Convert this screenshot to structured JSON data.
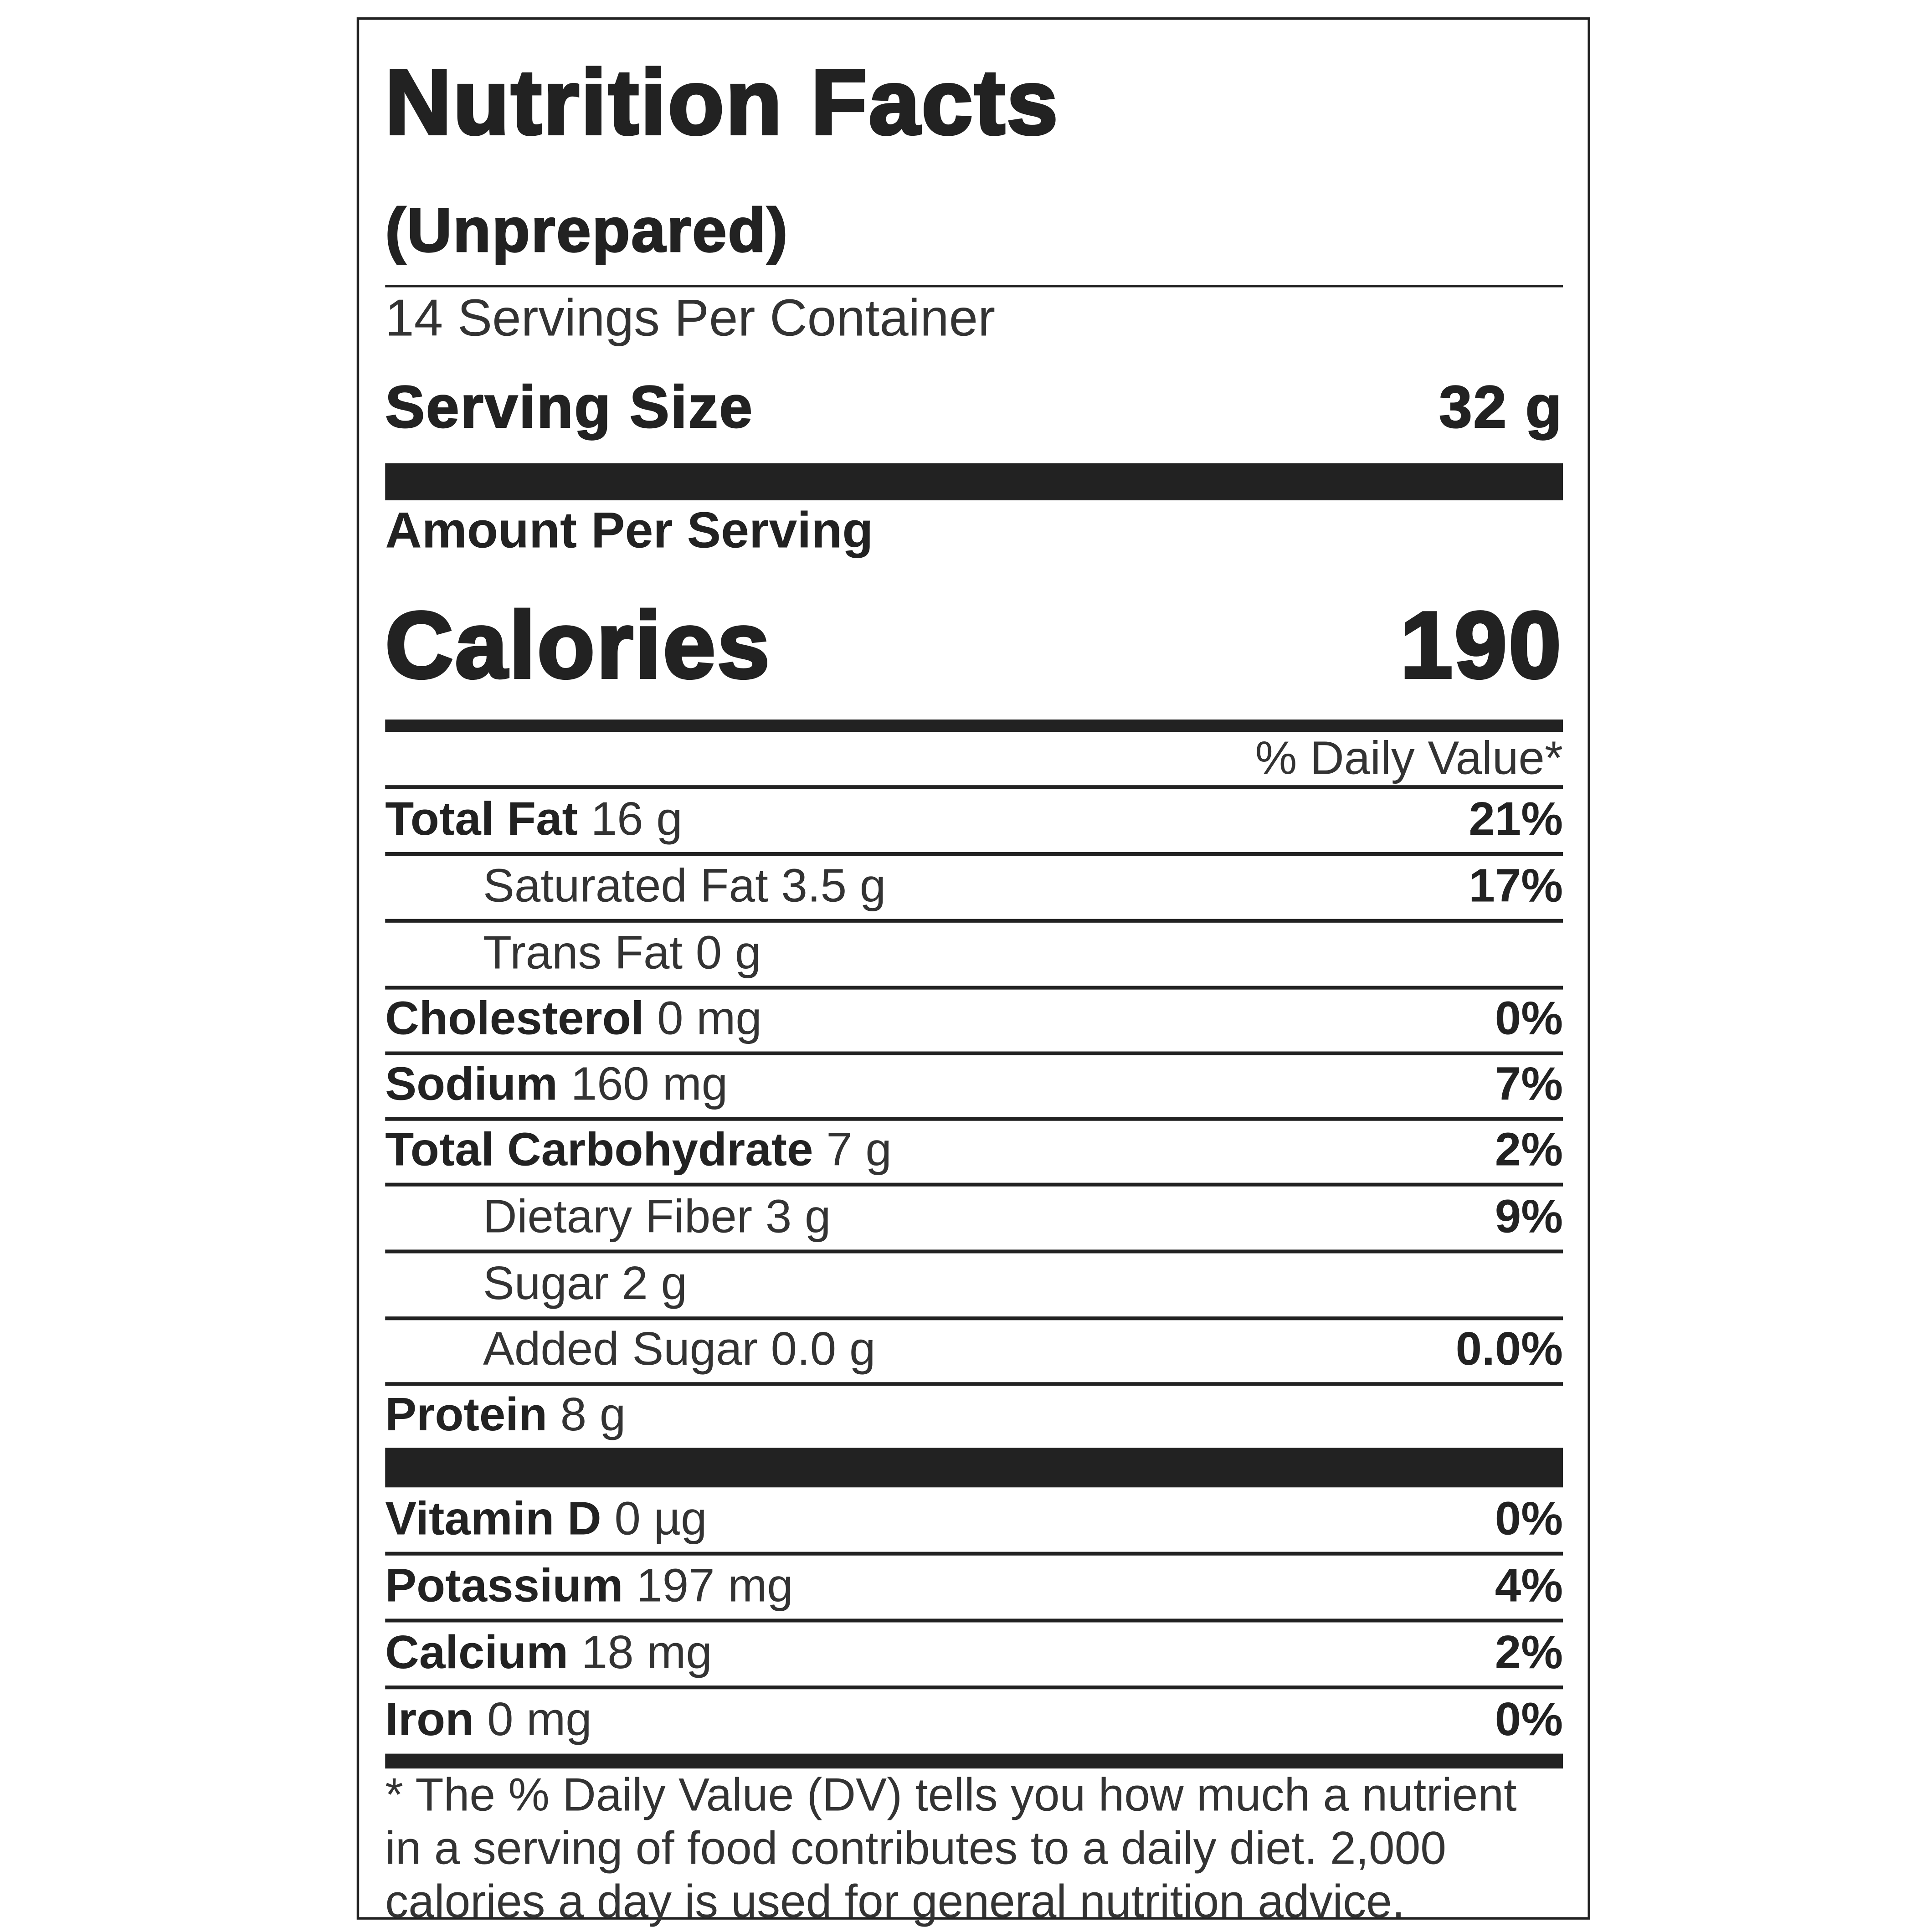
{
  "title": "Nutrition Facts",
  "subtitle": "(Unprepared)",
  "servings_per_container": "14 Servings Per Container",
  "serving_size": {
    "label": "Serving Size",
    "value": "32 g"
  },
  "amount_per_serving": "Amount Per Serving",
  "calories": {
    "label": "Calories",
    "value": "190"
  },
  "daily_value_header": "% Daily Value*",
  "nutrients": [
    {
      "name": "Total Fat",
      "amount": "16 g",
      "dv": "21%",
      "bold": true
    },
    {
      "name": "Saturated Fat",
      "amount": "3.5 g",
      "dv": "17%",
      "bold": false
    },
    {
      "name": "Trans Fat",
      "amount": "0 g",
      "dv": "",
      "bold": false
    },
    {
      "name": "Cholesterol",
      "amount": "0 mg",
      "dv": "0%",
      "bold": true
    },
    {
      "name": "Sodium",
      "amount": "160 mg",
      "dv": "7%",
      "bold": true
    },
    {
      "name": "Total Carbohydrate",
      "amount": "7 g",
      "dv": "2%",
      "bold": true
    },
    {
      "name": "Dietary Fiber",
      "amount": "3 g",
      "dv": "9%",
      "bold": false
    },
    {
      "name": "Sugar",
      "amount": "2 g",
      "dv": "",
      "bold": false
    },
    {
      "name": "Added Sugar",
      "amount": "0.0 g",
      "dv": "0.0%",
      "bold": false
    },
    {
      "name": "Protein",
      "amount": "8 g",
      "dv": "",
      "bold": true
    }
  ],
  "vitamins": [
    {
      "name": "Vitamin D",
      "amount": "0 µg",
      "dv": "0%"
    },
    {
      "name": "Potassium",
      "amount": "197 mg",
      "dv": "4%"
    },
    {
      "name": "Calcium",
      "amount": "18 mg",
      "dv": "2%"
    },
    {
      "name": "Iron",
      "amount": "0 mg",
      "dv": "0%"
    }
  ],
  "footnote": "* The % Daily Value (DV) tells you how much a nutrient in a serving of food contributes to a daily diet. 2,000 calories a day is used for general nutrition advice."
}
